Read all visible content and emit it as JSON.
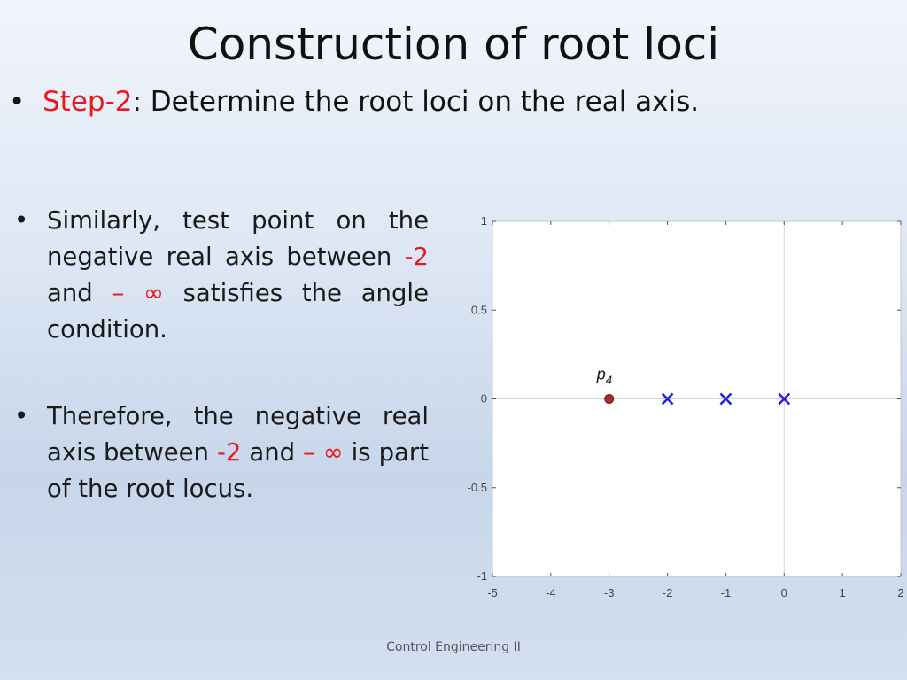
{
  "slide": {
    "title": "Construction of root loci",
    "step_label": "Step-2",
    "step_text": ": Determine the root loci on the real axis.",
    "bullet1": {
      "a": "Similarly, test point on the negative real axis between ",
      "b": "-2",
      "c": " and ",
      "d": "– ∞",
      "e": " satisfies the angle condition."
    },
    "bullet2": {
      "a": "Therefore, the negative real axis between ",
      "b": "-2",
      "c": " and ",
      "d": "– ∞",
      "e": " is part of the root locus."
    },
    "footer": "Control Engineering II",
    "bullet_char": "•"
  },
  "chart_data": {
    "type": "scatter",
    "xlim": [
      -5,
      2
    ],
    "ylim": [
      -1,
      1
    ],
    "x_ticks": [
      "-5",
      "-4",
      "-3",
      "-2",
      "-1",
      "0",
      "1",
      "2"
    ],
    "y_ticks": [
      "1",
      "0.5",
      "0",
      "-0.5",
      "-1"
    ],
    "grid": "lines at x=0 and y=0",
    "poles": [
      {
        "x": -2,
        "y": 0,
        "marker": "x",
        "color": "#1f1fe0"
      },
      {
        "x": -1,
        "y": 0,
        "marker": "x",
        "color": "#1f1fe0"
      },
      {
        "x": 0,
        "y": 0,
        "marker": "x",
        "color": "#1f1fe0"
      }
    ],
    "test_point": {
      "x": -3,
      "y": 0,
      "label": "p",
      "subscript": "4",
      "color": "#a0322a"
    }
  }
}
